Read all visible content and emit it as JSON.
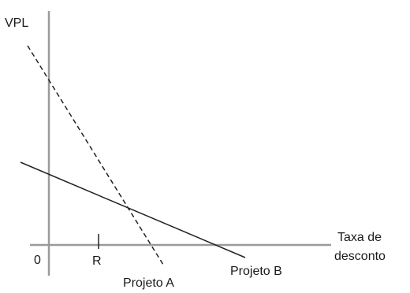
{
  "axes": {
    "y_label": "VPL",
    "x_label_line1": "Taxa de",
    "x_label_line2": "desconto",
    "origin_label": "0",
    "tick_label": "R"
  },
  "lines": {
    "project_a": {
      "label": "Projeto A",
      "style": "dashed"
    },
    "project_b": {
      "label": "Projeto B",
      "style": "solid"
    }
  },
  "colors": {
    "axis": "#9a9a9a",
    "line": "#222222",
    "text": "#1a1a1a"
  }
}
